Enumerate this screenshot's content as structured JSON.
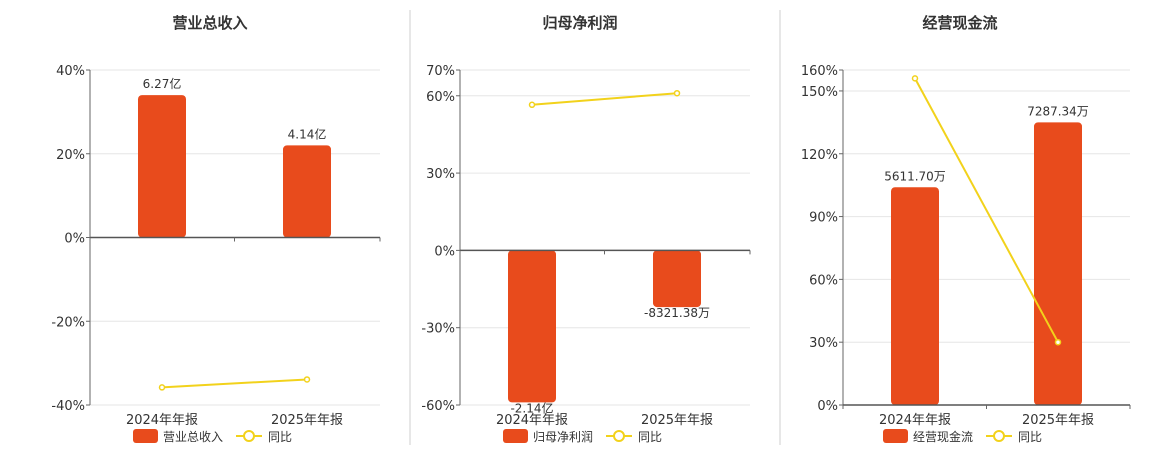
{
  "colors": {
    "bar": "#e84b1c",
    "line": "#f2d21b",
    "point_fill": "#ffffff"
  },
  "legend": {
    "line_label": "同比"
  },
  "chart_data": [
    {
      "type": "bar",
      "title": "营业总收入",
      "categories": [
        "2024年年报",
        "2025年年报"
      ],
      "series": [
        {
          "name": "营业总收入",
          "kind": "bar",
          "values": [
            34,
            22
          ],
          "labels": [
            "6.27亿",
            "4.14亿"
          ]
        },
        {
          "name": "同比",
          "kind": "line",
          "values": [
            -35.8,
            -33.9
          ]
        }
      ],
      "ylim": [
        -40,
        40
      ],
      "yticks": [
        40,
        20,
        0,
        -20,
        -40
      ],
      "ytick_labels": [
        "40%",
        "20%",
        "0%",
        "-20%",
        "-40%"
      ],
      "legend_position": "bottom"
    },
    {
      "type": "bar",
      "title": "归母净利润",
      "categories": [
        "2024年年报",
        "2025年年报"
      ],
      "series": [
        {
          "name": "归母净利润",
          "kind": "bar",
          "values": [
            -59,
            -22
          ],
          "labels": [
            "-2.14亿",
            "-8321.38万"
          ]
        },
        {
          "name": "同比",
          "kind": "line",
          "values": [
            56.5,
            61
          ]
        }
      ],
      "ylim": [
        -60,
        70
      ],
      "yticks": [
        70,
        60,
        30,
        0,
        -30,
        -60
      ],
      "ytick_labels": [
        "70%",
        "60%",
        "30%",
        "0%",
        "-30%",
        "-60%"
      ],
      "legend_position": "bottom"
    },
    {
      "type": "bar",
      "title": "经营现金流",
      "categories": [
        "2024年年报",
        "2025年年报"
      ],
      "series": [
        {
          "name": "经营现金流",
          "kind": "bar",
          "values": [
            104,
            135
          ],
          "labels": [
            "5611.70万",
            "7287.34万"
          ]
        },
        {
          "name": "同比",
          "kind": "line",
          "values": [
            156,
            30
          ]
        }
      ],
      "ylim": [
        0,
        160
      ],
      "yticks": [
        160,
        150,
        120,
        90,
        60,
        30,
        0
      ],
      "ytick_labels": [
        "160%",
        "150%",
        "120%",
        "90%",
        "60%",
        "30%",
        "0%"
      ],
      "legend_position": "bottom"
    }
  ]
}
